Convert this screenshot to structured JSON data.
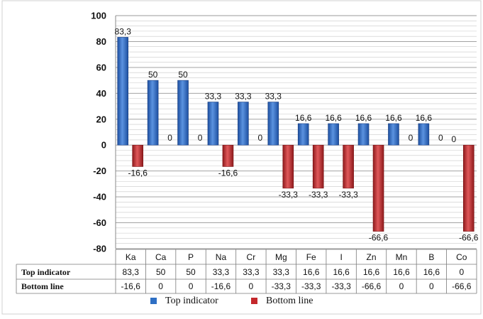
{
  "chart_data": {
    "type": "bar",
    "categories": [
      "Ka",
      "Ca",
      "P",
      "Na",
      "Cr",
      "Mg",
      "Fe",
      "I",
      "Zn",
      "Mn",
      "B",
      "Co"
    ],
    "series": [
      {
        "name": "Top indicator",
        "values": [
          83.3,
          50,
          50,
          33.3,
          33.3,
          33.3,
          16.6,
          16.6,
          16.6,
          16.6,
          16.6,
          0
        ],
        "labels": [
          "83,3",
          "50",
          "50",
          "33,3",
          "33,3",
          "33,3",
          "16,6",
          "16,6",
          "16,6",
          "16,6",
          "16,6",
          "0"
        ],
        "color": "#2E6FC4"
      },
      {
        "name": "Bottom line",
        "values": [
          -16.6,
          0,
          0,
          -16.6,
          0,
          -33.3,
          -33.3,
          -33.3,
          -66.6,
          0,
          0,
          -66.6
        ],
        "labels": [
          "-16,6",
          "0",
          "0",
          "-16,6",
          "0",
          "-33,3",
          "-33,3",
          "-33,3",
          "-66,6",
          "0",
          "0",
          "-66,6"
        ],
        "color": "#C4282C"
      }
    ],
    "ylim": [
      -80,
      100
    ],
    "yticks": [
      100,
      80,
      60,
      40,
      20,
      0,
      -20,
      -40,
      -60,
      -80
    ],
    "grid": true,
    "legend": "bottom",
    "data_table": true
  }
}
